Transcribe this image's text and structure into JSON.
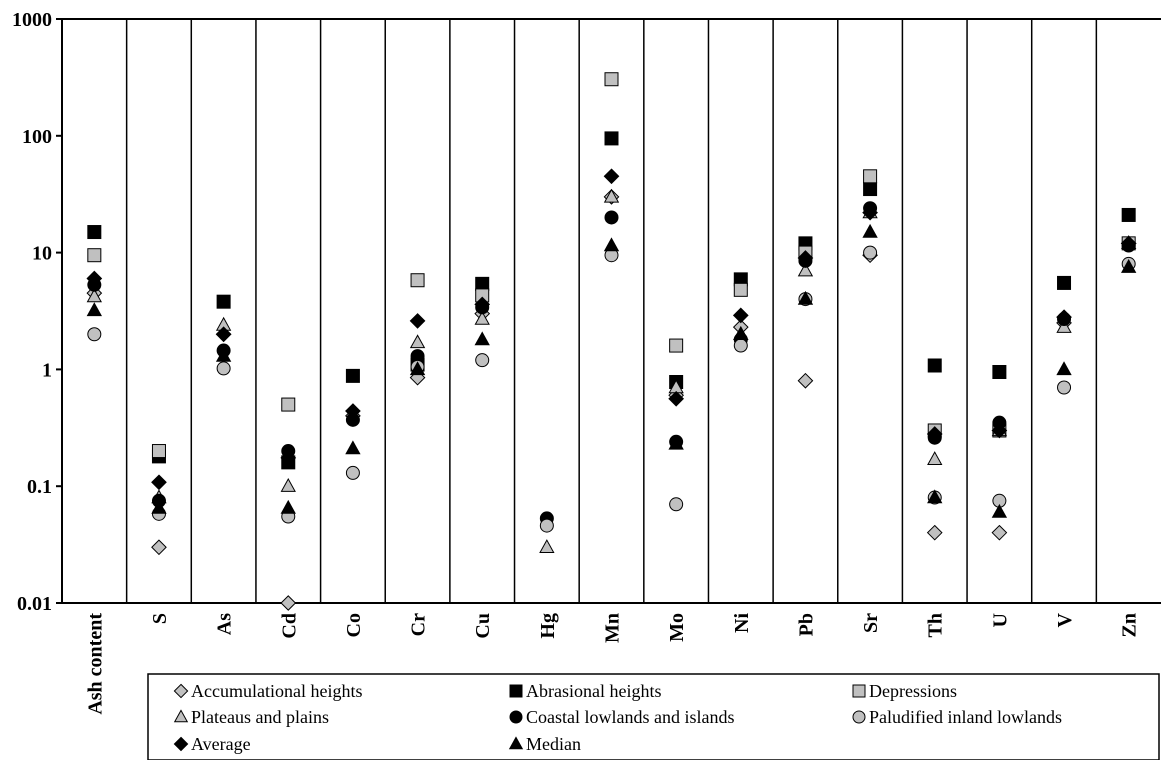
{
  "chart_data": {
    "type": "scatter",
    "y_scale": "log",
    "ylim": [
      0.01,
      1000
    ],
    "y_ticks": [
      {
        "value": 0.01,
        "label": "0.01"
      },
      {
        "value": 0.1,
        "label": "0.1"
      },
      {
        "value": 1,
        "label": "1"
      },
      {
        "value": 10,
        "label": "10"
      },
      {
        "value": 100,
        "label": "100"
      },
      {
        "value": 1000,
        "label": "1000"
      }
    ],
    "categories": [
      "Ash content",
      "S",
      "As",
      "Cd",
      "Co",
      "Cr",
      "Cu",
      "Hg",
      "Mn",
      "Mo",
      "Ni",
      "Pb",
      "Sr",
      "Th",
      "U",
      "V",
      "Zn"
    ],
    "legend_position": "bottom",
    "series": [
      {
        "name": "Accumulational heights",
        "marker": "diamond",
        "fill": "#c0c0c0",
        "values": [
          4.5,
          0.03,
          2.0,
          0.01,
          0.4,
          0.85,
          3.0,
          null,
          30,
          0.6,
          2.3,
          0.8,
          9.5,
          0.04,
          0.04,
          2.5,
          12
        ]
      },
      {
        "name": "Abrasional heights",
        "marker": "square",
        "fill": "#000000",
        "values": [
          15,
          0.18,
          3.8,
          0.16,
          0.88,
          1.1,
          5.4,
          null,
          95,
          0.78,
          5.9,
          12,
          35,
          1.08,
          0.95,
          5.5,
          21
        ]
      },
      {
        "name": "Depressions",
        "marker": "square",
        "fill": "#c0c0c0",
        "values": [
          9.5,
          0.2,
          null,
          0.5,
          null,
          5.8,
          4.3,
          null,
          305,
          1.6,
          4.8,
          10,
          45,
          0.3,
          0.3,
          null,
          12
        ]
      },
      {
        "name": "Plateaus and plains",
        "marker": "triangle",
        "fill": "#c0c0c0",
        "values": [
          4.2,
          0.08,
          2.4,
          0.1,
          null,
          1.7,
          2.7,
          0.03,
          30,
          0.7,
          2.0,
          7.0,
          22,
          0.17,
          0.3,
          2.3,
          12
        ]
      },
      {
        "name": "Coastal lowlands and islands",
        "marker": "circle",
        "fill": "#000000",
        "values": [
          5.3,
          0.075,
          1.45,
          0.2,
          0.37,
          1.3,
          3.4,
          0.053,
          20,
          0.24,
          1.8,
          8.5,
          24,
          0.26,
          0.35,
          2.7,
          11.5
        ]
      },
      {
        "name": "Paludified inland lowlands",
        "marker": "circle",
        "fill": "#c0c0c0",
        "values": [
          2.0,
          0.058,
          1.02,
          0.055,
          0.13,
          1.05,
          1.2,
          0.046,
          9.5,
          0.07,
          1.6,
          4.0,
          10,
          0.08,
          0.075,
          0.7,
          8.0
        ]
      },
      {
        "name": "Average",
        "marker": "diamond",
        "fill": "#000000",
        "values": [
          6.0,
          0.108,
          2.0,
          0.175,
          0.44,
          2.6,
          3.6,
          null,
          45,
          0.56,
          2.9,
          9.0,
          22,
          0.28,
          0.3,
          2.8,
          12
        ]
      },
      {
        "name": "Median",
        "marker": "triangle",
        "fill": "#000000",
        "values": [
          3.2,
          0.065,
          1.3,
          0.065,
          0.21,
          1.0,
          1.8,
          null,
          11.5,
          0.23,
          2.0,
          4.0,
          15,
          0.08,
          0.06,
          1.0,
          7.5
        ]
      }
    ]
  }
}
